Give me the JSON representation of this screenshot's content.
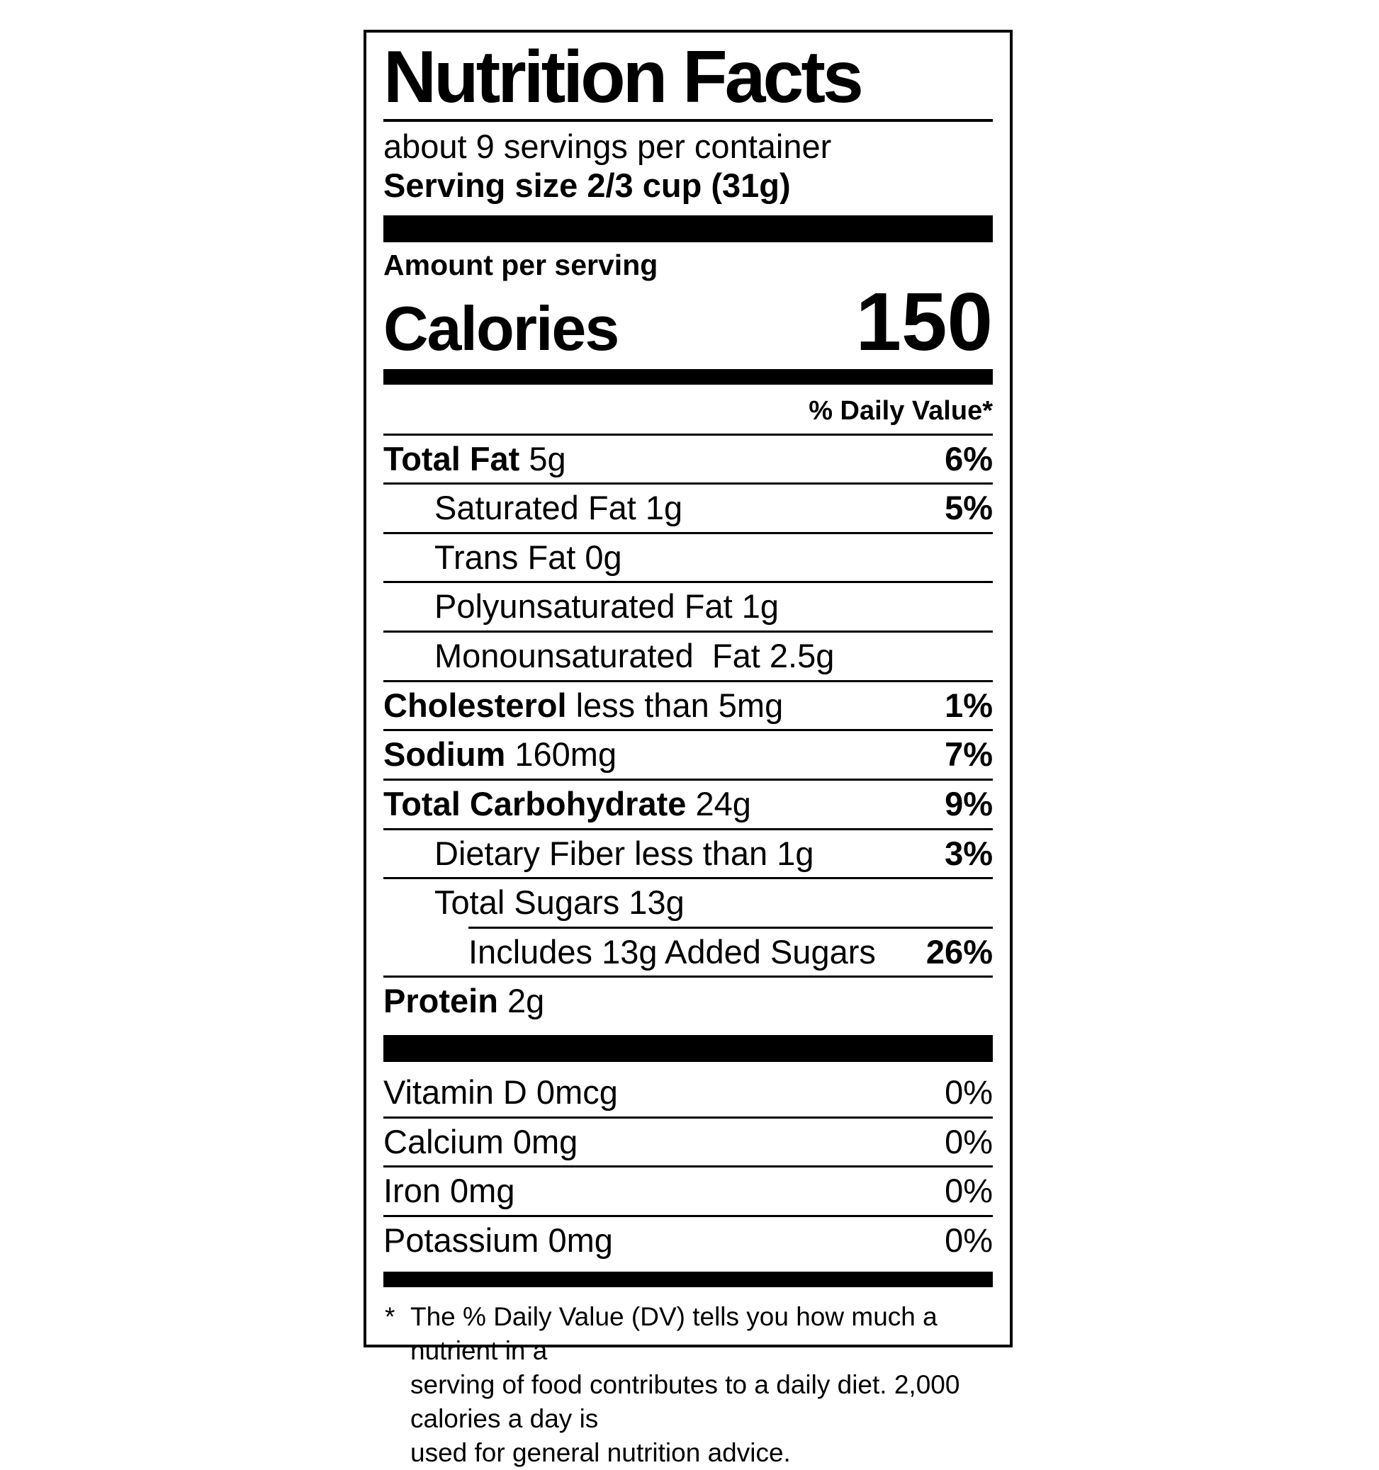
{
  "label": {
    "title": "Nutrition Facts",
    "servings_per_container": "about 9 servings per container",
    "serving_size_line": "Serving size 2/3 cup (31g)",
    "calories": {
      "heading": "Amount per serving",
      "label": "Calories",
      "value": "150"
    },
    "daily_value_header": "% Daily Value*",
    "nutrient_rows": [
      {
        "name": "Total Fat",
        "amount": " 5g",
        "pct": "6%"
      },
      {
        "name": "",
        "amount": "Saturated Fat 1g",
        "pct": "5%"
      },
      {
        "name": "",
        "amount": "Trans Fat 0g",
        "pct": ""
      },
      {
        "name": "",
        "amount": "Polyunsaturated Fat 1g",
        "pct": ""
      },
      {
        "name": "",
        "amount": "Monounsaturated  Fat 2.5g",
        "pct": ""
      },
      {
        "name": "Cholesterol",
        "amount": " less than 5mg",
        "pct": "1%"
      },
      {
        "name": "Sodium",
        "amount": " 160mg",
        "pct": "7%"
      },
      {
        "name": "Total Carbohydrate",
        "amount": " 24g",
        "pct": "9%"
      },
      {
        "name": "",
        "amount": "Dietary Fiber less than 1g",
        "pct": "3%"
      },
      {
        "name": "",
        "amount": "Total Sugars 13g",
        "pct": ""
      },
      {
        "name": "",
        "amount": "Includes 13g Added Sugars",
        "pct": "26%"
      },
      {
        "name": "Protein",
        "amount": " 2g",
        "pct": ""
      }
    ],
    "micronutrient_rows": [
      {
        "text": "Vitamin D 0mcg",
        "pct": "0%"
      },
      {
        "text": "Calcium 0mg",
        "pct": "0%"
      },
      {
        "text": "Iron 0mg",
        "pct": "0%"
      },
      {
        "text": "Potassium 0mg",
        "pct": "0%"
      }
    ],
    "footnote_marker": "*",
    "footnote": "The % Daily Value (DV) tells you how much a nutrient in a\nserving of food contributes to a daily diet. 2,000 calories a day is\nused for general nutrition advice.",
    "colors": {
      "ink": "#000000",
      "background": "#ffffff"
    }
  }
}
